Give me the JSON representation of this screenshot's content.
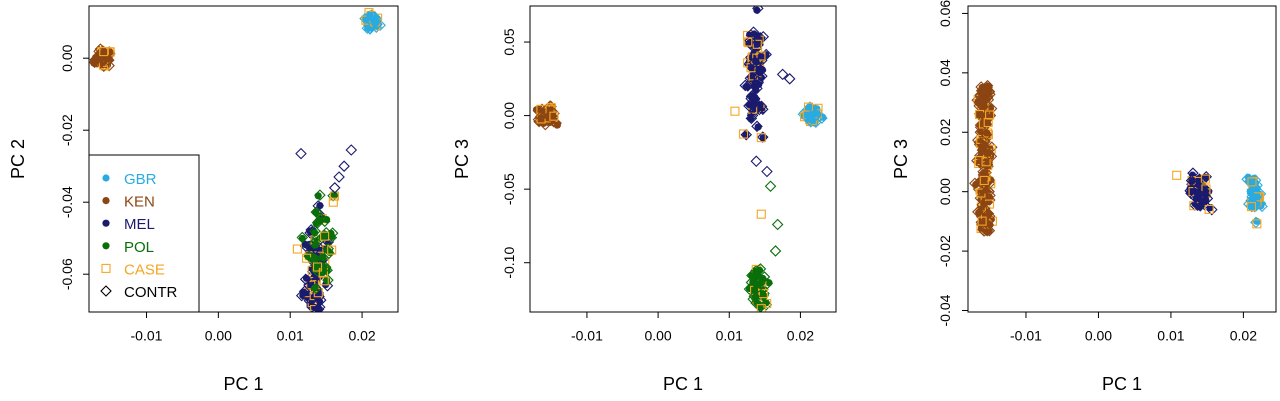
{
  "legend": [
    {
      "label": "GBR",
      "color": "#29abe2",
      "marker": "filled-circle"
    },
    {
      "label": "KEN",
      "color": "#8b4513",
      "marker": "filled-circle"
    },
    {
      "label": "MEL",
      "color": "#1a1a6e",
      "marker": "filled-circle"
    },
    {
      "label": "POL",
      "color": "#0a6e0a",
      "marker": "filled-circle"
    },
    {
      "label": "CASE",
      "color": "#f5a623",
      "marker": "open-square"
    },
    {
      "label": "CONTR",
      "color": "#000000",
      "marker": "open-diamond"
    }
  ],
  "chart_data": [
    {
      "type": "scatter",
      "xlabel": "PC 1",
      "ylabel": "PC 2",
      "xlim": [
        -0.018,
        0.025
      ],
      "ylim": [
        -0.0705,
        0.0145
      ],
      "xticks": [
        -0.01,
        0.0,
        0.01,
        0.02
      ],
      "xtick_labels": [
        "-0.01",
        "0.00",
        "0.01",
        "0.02"
      ],
      "yticks": [
        -0.06,
        -0.04,
        -0.02,
        0.0
      ],
      "ytick_labels": [
        "-0.06",
        "-0.04",
        "-0.02",
        "0.00"
      ],
      "legend": "bottom-left",
      "clusters": [
        {
          "group": "KEN",
          "cx": -0.016,
          "cy": 0.0,
          "sx": 0.0005,
          "sy": 0.0011,
          "n": 40
        },
        {
          "group": "GBR",
          "cx": 0.0214,
          "cy": 0.01,
          "sx": 0.0004,
          "sy": 0.0009,
          "n": 36
        },
        {
          "group": "MEL",
          "cx": 0.0135,
          "cy": -0.06,
          "sx": 0.0008,
          "sy": 0.007,
          "n": 60
        },
        {
          "group": "POL",
          "cx": 0.0143,
          "cy": -0.052,
          "sx": 0.0009,
          "sy": 0.008,
          "n": 30
        }
      ],
      "outliers": [
        {
          "x": 0.0115,
          "y": -0.0265,
          "m": "d"
        },
        {
          "x": 0.0185,
          "y": -0.0255,
          "m": "d"
        },
        {
          "x": 0.0175,
          "y": -0.03,
          "m": "d"
        },
        {
          "x": 0.0168,
          "y": -0.033,
          "m": "d"
        },
        {
          "x": 0.0162,
          "y": -0.036,
          "m": "d"
        },
        {
          "x": 0.011,
          "y": -0.053,
          "m": "s"
        },
        {
          "x": 0.016,
          "y": -0.04,
          "m": "s"
        },
        {
          "x": 0.0138,
          "y": -0.058,
          "m": "s"
        }
      ]
    },
    {
      "type": "scatter",
      "xlabel": "PC 1",
      "ylabel": "PC 3",
      "xlim": [
        -0.018,
        0.025
      ],
      "ylim": [
        -0.1335,
        0.0745
      ],
      "xticks": [
        -0.01,
        0.0,
        0.01,
        0.02
      ],
      "xtick_labels": [
        "-0.01",
        "0.00",
        "0.01",
        "0.02"
      ],
      "yticks": [
        -0.1,
        -0.05,
        0.0,
        0.05
      ],
      "ytick_labels": [
        "-0.10",
        "-0.05",
        "0.00",
        "0.05"
      ],
      "clusters": [
        {
          "group": "KEN",
          "cx": -0.0155,
          "cy": 0.0,
          "sx": 0.0006,
          "sy": 0.0025,
          "n": 40
        },
        {
          "group": "GBR",
          "cx": 0.0215,
          "cy": 0.0,
          "sx": 0.0005,
          "sy": 0.003,
          "n": 36
        },
        {
          "group": "MEL",
          "cx": 0.0137,
          "cy": 0.03,
          "sx": 0.0006,
          "sy": 0.017,
          "n": 70
        },
        {
          "group": "POL",
          "cx": 0.014,
          "cy": -0.118,
          "sx": 0.0005,
          "sy": 0.0055,
          "n": 30
        }
      ],
      "outliers": [
        {
          "x": 0.0108,
          "y": 0.003,
          "m": "s"
        },
        {
          "x": 0.0145,
          "y": -0.015,
          "m": "s"
        },
        {
          "x": 0.0145,
          "y": -0.067,
          "m": "s"
        },
        {
          "x": 0.0158,
          "y": -0.048,
          "m": "d"
        },
        {
          "x": 0.0168,
          "y": -0.074,
          "m": "d"
        },
        {
          "x": 0.0165,
          "y": -0.092,
          "m": "d"
        },
        {
          "x": 0.0138,
          "y": -0.031,
          "m": "d"
        },
        {
          "x": 0.0153,
          "y": -0.038,
          "m": "d"
        },
        {
          "x": 0.0175,
          "y": 0.028,
          "m": "d"
        },
        {
          "x": 0.0185,
          "y": 0.025,
          "m": "d"
        }
      ]
    },
    {
      "type": "scatter",
      "xlabel": "PC 1",
      "ylabel": "PC 3",
      "xlim": [
        -0.018,
        0.0245
      ],
      "ylim": [
        -0.0405,
        0.0625
      ],
      "xticks": [
        -0.01,
        0.0,
        0.01,
        0.02
      ],
      "xtick_labels": [
        "-0.01",
        "0.00",
        "0.01",
        "0.02"
      ],
      "yticks": [
        -0.04,
        -0.02,
        0.0,
        0.02,
        0.04,
        0.06
      ],
      "ytick_labels": [
        "-0.04",
        "-0.02",
        "0.00",
        "0.02",
        "0.04",
        "0.06"
      ],
      "clusters": [
        {
          "group": "KEN",
          "cx": -0.0157,
          "cy": 0.011,
          "sx": 0.00045,
          "sy": 0.0245,
          "n": 150,
          "uniform": true
        },
        {
          "group": "MEL",
          "cx": 0.014,
          "cy": 0.0,
          "sx": 0.0007,
          "sy": 0.0025,
          "n": 36
        },
        {
          "group": "GBR",
          "cx": 0.0215,
          "cy": -0.001,
          "sx": 0.0004,
          "sy": 0.004,
          "n": 40
        }
      ],
      "outliers": [
        {
          "x": 0.0108,
          "y": 0.0055,
          "m": "s"
        }
      ]
    }
  ]
}
